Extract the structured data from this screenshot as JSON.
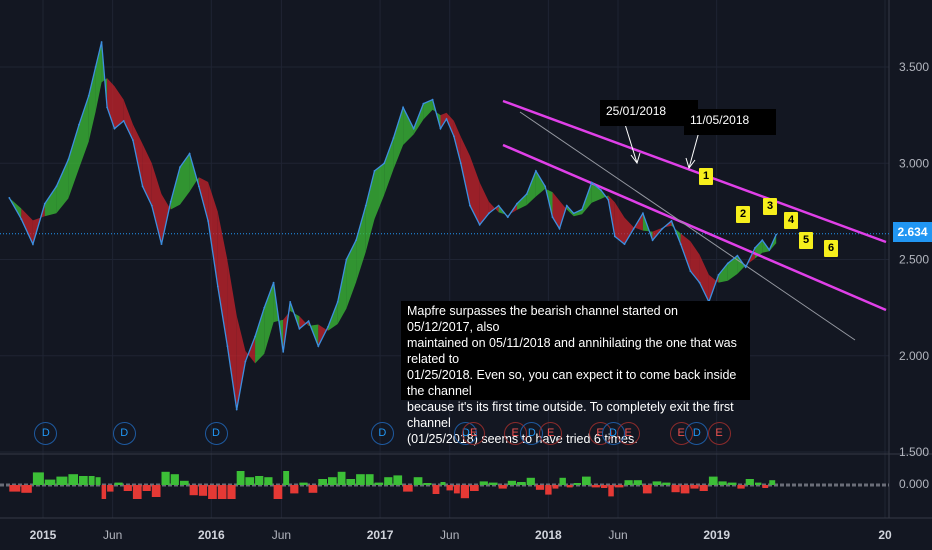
{
  "chart_data": {
    "type": "line",
    "x_tick_labels": [
      "2015",
      "Jun",
      "2016",
      "Jun",
      "2017",
      "Jun",
      "2018",
      "Jun",
      "2019",
      "20"
    ],
    "x_tick_bold": [
      true,
      false,
      true,
      false,
      true,
      false,
      true,
      false,
      true,
      true
    ],
    "x_tick_dates": [
      "2015-01-01",
      "2015-06-01",
      "2016-01-01",
      "2016-06-01",
      "2017-01-01",
      "2017-06-01",
      "2018-01-01",
      "2018-06-01",
      "2019-01-01",
      "2020-01-01"
    ],
    "y_tick_labels": [
      "3.500",
      "3.000",
      "2.500",
      "2.000",
      "1.500"
    ],
    "y_ticks": [
      3.5,
      3.0,
      2.5,
      2.0,
      1.5
    ],
    "ylim": [
      1.5,
      3.75
    ],
    "last_price": "2.634",
    "last_value": 2.634,
    "series": [
      {
        "dates": [
          "2014-10-20",
          "2014-11-15",
          "2014-12-10",
          "2015-01-05",
          "2015-01-30",
          "2015-02-25",
          "2015-03-20",
          "2015-04-10",
          "2015-04-25",
          "2015-05-08",
          "2015-05-20",
          "2015-06-05",
          "2015-06-25",
          "2015-07-15",
          "2015-08-05",
          "2015-08-25",
          "2015-09-15",
          "2015-10-05",
          "2015-10-25",
          "2015-11-15",
          "2015-12-05",
          "2015-12-25",
          "2016-01-15",
          "2016-02-05",
          "2016-02-25",
          "2016-03-15",
          "2016-04-05",
          "2016-04-25",
          "2016-05-15",
          "2016-06-05",
          "2016-06-20",
          "2016-07-10",
          "2016-07-30",
          "2016-08-20",
          "2016-09-10",
          "2016-10-01",
          "2016-10-20",
          "2016-11-10",
          "2016-12-01",
          "2016-12-20",
          "2017-01-10",
          "2017-01-30",
          "2017-02-20",
          "2017-03-15",
          "2017-04-05",
          "2017-04-25",
          "2017-05-12",
          "2017-05-25",
          "2017-06-10",
          "2017-06-25",
          "2017-07-15",
          "2017-08-05",
          "2017-08-25",
          "2017-09-15",
          "2017-10-05",
          "2017-10-25",
          "2017-11-15",
          "2017-12-05",
          "2017-12-25",
          "2018-01-10",
          "2018-01-25",
          "2018-02-10",
          "2018-02-25",
          "2018-03-15",
          "2018-04-05",
          "2018-04-25",
          "2018-05-11",
          "2018-05-25",
          "2018-06-15",
          "2018-07-05",
          "2018-07-25",
          "2018-08-15",
          "2018-09-05",
          "2018-09-25",
          "2018-10-15",
          "2018-11-05",
          "2018-11-25",
          "2018-12-15",
          "2019-01-05",
          "2019-01-25",
          "2019-02-15",
          "2019-03-05",
          "2019-03-25",
          "2019-04-10",
          "2019-04-25",
          "2019-05-10"
        ],
        "values": [
          2.82,
          2.71,
          2.58,
          2.79,
          2.88,
          3.02,
          3.2,
          3.35,
          3.5,
          3.63,
          3.29,
          3.18,
          3.22,
          3.12,
          2.88,
          2.78,
          2.58,
          2.8,
          2.98,
          3.05,
          2.88,
          2.7,
          2.36,
          2.05,
          1.72,
          1.97,
          2.1,
          2.25,
          2.38,
          2.02,
          2.28,
          2.14,
          2.18,
          2.05,
          2.15,
          2.28,
          2.5,
          2.6,
          2.78,
          2.96,
          3.0,
          3.13,
          3.29,
          3.18,
          3.31,
          3.33,
          3.18,
          3.23,
          3.14,
          3.0,
          2.78,
          2.68,
          2.74,
          2.78,
          2.72,
          2.79,
          2.84,
          2.96,
          2.88,
          2.72,
          2.66,
          2.78,
          2.74,
          2.76,
          2.9,
          2.86,
          2.81,
          2.62,
          2.58,
          2.66,
          2.74,
          2.6,
          2.66,
          2.7,
          2.58,
          2.44,
          2.38,
          2.28,
          2.42,
          2.48,
          2.52,
          2.46,
          2.56,
          2.6,
          2.55,
          2.63
        ]
      }
    ]
  },
  "annotation": {
    "lines": [
      "Mapfre surpasses the bearish channel started on 05/12/2017, also",
      "maintained on 05/11/2018 and annihilating the one that was related to",
      "01/25/2018. Even so, you can expect it to come back inside the channel",
      "because it's its first time outside. To completely exit the first channel",
      "(01/25/2018) seems to have tried 6 times."
    ]
  },
  "date_labels": {
    "first": "25/01/2018",
    "second": "11/05/2018"
  },
  "attempt_tags": [
    "1",
    "2",
    "3",
    "4",
    "5",
    "6"
  ],
  "events": [
    "D",
    "D",
    "D",
    "D",
    "D",
    "E",
    "E",
    "D",
    "E",
    "E",
    "D",
    "E",
    "E",
    "D",
    "E"
  ],
  "event_dates": [
    "2015-01-06",
    "2015-06-25",
    "2016-01-10",
    "2017-01-05",
    "2017-07-05",
    "2017-07-22",
    "2017-10-20",
    "2017-11-25",
    "2018-01-05",
    "2018-04-22",
    "2018-05-20",
    "2018-06-22",
    "2018-10-15",
    "2018-11-18",
    "2019-01-05"
  ],
  "oscillator": {
    "zero_label": "0.000"
  },
  "colors": {
    "price": "#3d8fe0",
    "band_up": "#3cbf37",
    "band_down": "#c8232b",
    "channel": "#e040e8",
    "channel_inner": "#9598a1",
    "badge": "#2196f3",
    "tag": "#f6ef1c"
  }
}
